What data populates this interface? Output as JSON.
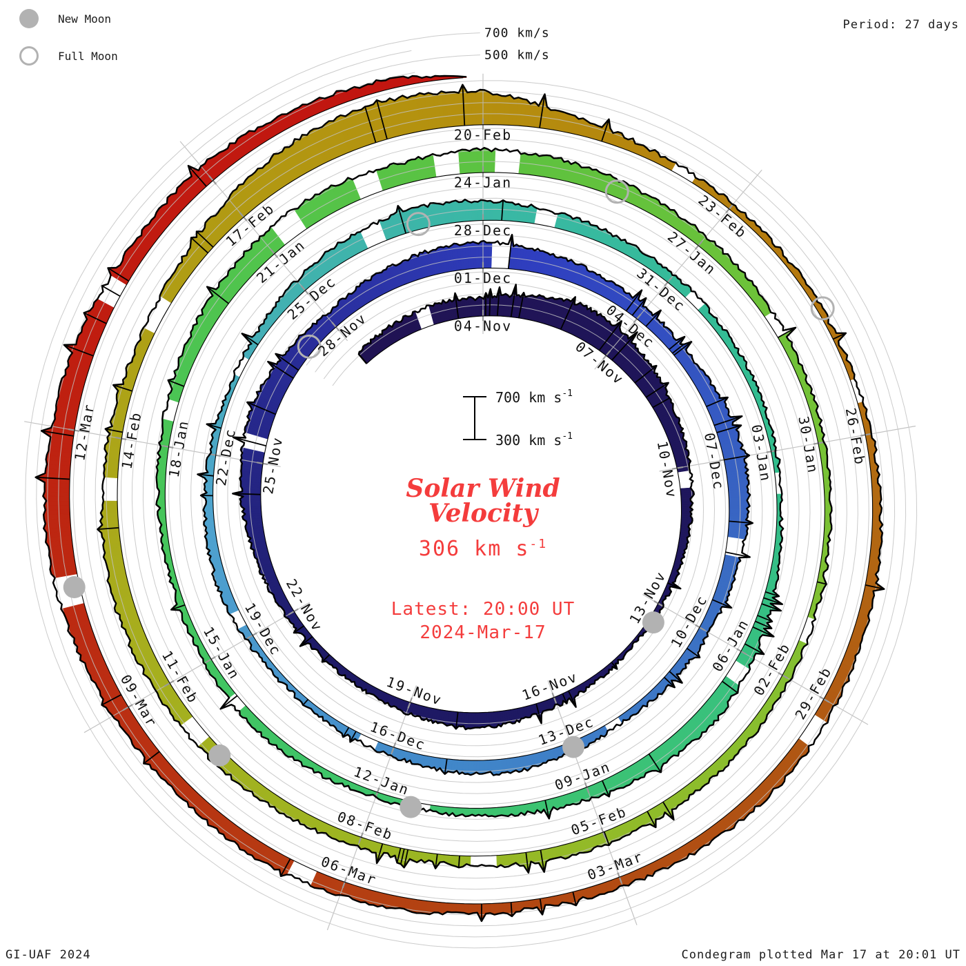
{
  "legend": {
    "new_moon": "New Moon",
    "full_moon": "Full Moon"
  },
  "header": {
    "period": "Period: 27 days"
  },
  "footer": {
    "left": "GI-UAF 2024",
    "right": "Condegram plotted Mar 17 at 20:01 UT"
  },
  "center": {
    "title_line1": "Solar Wind",
    "title_line2": "Velocity",
    "value": "306 km s",
    "value_sup": "-1",
    "latest_line1": "Latest: 20:00 UT",
    "latest_line2": "2024-Mar-17"
  },
  "scalebar": {
    "top": "700 km s",
    "top_sup": "-1",
    "bottom": "300 km s",
    "bottom_sup": "-1"
  },
  "chart_data": {
    "type": "area-spiral",
    "title": "Solar Wind Velocity",
    "units": "km/s",
    "period_days": 27,
    "angle_positions_per_turn": 9,
    "ylim": [
      300,
      700
    ],
    "radial_reference_levels": [
      400,
      500,
      600,
      700
    ],
    "outer_scale_labels": [
      {
        "text": "700 km/s",
        "level": 700
      },
      {
        "text": "500 km/s",
        "level": 500
      }
    ],
    "start_date": "2023-11-01",
    "end_day": 137.8333,
    "latest_value": 306,
    "latest_time": "20:00 UT",
    "latest_date": "2024-Mar-17",
    "velocity_daily": [
      420,
      450,
      480,
      460,
      520,
      580,
      560,
      500,
      450,
      420,
      390,
      360,
      340,
      330,
      350,
      380,
      420,
      440,
      400,
      370,
      360,
      380,
      420,
      460,
      500,
      530,
      490,
      440,
      480,
      520,
      540,
      500,
      460,
      430,
      410,
      450,
      490,
      470,
      430,
      400,
      380,
      360,
      390,
      430,
      410,
      380,
      360,
      350,
      370,
      400,
      380,
      360,
      350,
      370,
      420,
      470,
      500,
      480,
      440,
      410,
      390,
      370,
      360,
      350,
      340,
      380,
      430,
      480,
      450,
      410,
      380,
      360,
      350,
      370,
      390,
      370,
      350,
      360,
      380,
      420,
      460,
      500,
      520,
      490,
      510,
      480,
      440,
      410,
      390,
      370,
      360,
      350,
      360,
      380,
      390,
      400,
      420,
      400,
      380,
      390,
      410,
      430,
      450,
      470,
      450,
      420,
      400,
      430,
      520,
      610,
      640,
      600,
      450,
      380,
      360,
      350,
      340,
      360,
      380,
      400,
      420,
      430,
      410,
      390,
      380,
      400,
      430,
      450,
      430,
      460,
      500,
      530,
      510,
      480,
      450,
      470,
      430,
      390
    ],
    "gaps": [
      [
        1.55,
        1.85
      ],
      [
        9.1,
        9.45
      ],
      [
        24.2,
        24.5
      ],
      [
        30.15,
        30.45
      ],
      [
        37.35,
        37.65
      ],
      [
        41.1,
        41.35
      ],
      [
        45.25,
        45.6
      ],
      [
        48.2,
        48.45
      ],
      [
        52.3,
        52.6
      ],
      [
        55.15,
        55.5
      ],
      [
        57.8,
        58.1
      ],
      [
        60.35,
        60.6
      ],
      [
        63.3,
        63.65
      ],
      [
        66.15,
        66.4
      ],
      [
        71.25,
        71.6
      ],
      [
        74.2,
        74.45
      ],
      [
        78.35,
        78.6
      ],
      [
        81.2,
        81.55
      ],
      [
        82.35,
        82.65
      ],
      [
        83.4,
        83.7
      ],
      [
        84.15,
        84.45
      ],
      [
        88.25,
        88.55
      ],
      [
        92.2,
        92.5
      ],
      [
        97.35,
        97.65
      ],
      [
        101.2,
        101.5
      ],
      [
        104.25,
        104.55
      ],
      [
        106.3,
        106.7
      ],
      [
        113.2,
        113.5
      ],
      [
        116.35,
        116.65
      ],
      [
        120.2,
        120.5
      ],
      [
        126.3,
        126.6
      ],
      [
        130.2,
        130.5
      ],
      [
        133.35,
        133.6
      ]
    ],
    "spike_zones": [
      [
        3,
        8
      ],
      [
        12,
        15
      ],
      [
        35,
        40
      ],
      [
        43,
        46
      ],
      [
        65,
        68
      ],
      [
        95,
        99
      ],
      [
        131,
        134
      ]
    ],
    "date_labels": [
      {
        "d": 3,
        "t": "04-Nov"
      },
      {
        "d": 6,
        "t": "07-Nov"
      },
      {
        "d": 9,
        "t": "10-Nov"
      },
      {
        "d": 12,
        "t": "13-Nov"
      },
      {
        "d": 15,
        "t": "16-Nov"
      },
      {
        "d": 18,
        "t": "19-Nov"
      },
      {
        "d": 21,
        "t": "22-Nov"
      },
      {
        "d": 24,
        "t": "25-Nov"
      },
      {
        "d": 27,
        "t": "28-Nov"
      },
      {
        "d": 30,
        "t": "01-Dec"
      },
      {
        "d": 33,
        "t": "04-Dec"
      },
      {
        "d": 36,
        "t": "07-Dec"
      },
      {
        "d": 39,
        "t": "10-Dec"
      },
      {
        "d": 42,
        "t": "13-Dec"
      },
      {
        "d": 45,
        "t": "16-Dec"
      },
      {
        "d": 48,
        "t": "19-Dec"
      },
      {
        "d": 51,
        "t": "22-Dec"
      },
      {
        "d": 54,
        "t": "25-Dec"
      },
      {
        "d": 57,
        "t": "28-Dec"
      },
      {
        "d": 60,
        "t": "31-Dec"
      },
      {
        "d": 63,
        "t": "03-Jan"
      },
      {
        "d": 66,
        "t": "06-Jan"
      },
      {
        "d": 69,
        "t": "09-Jan"
      },
      {
        "d": 72,
        "t": "12-Jan"
      },
      {
        "d": 75,
        "t": "15-Jan"
      },
      {
        "d": 78,
        "t": "18-Jan"
      },
      {
        "d": 81,
        "t": "21-Jan"
      },
      {
        "d": 84,
        "t": "24-Jan"
      },
      {
        "d": 87,
        "t": "27-Jan"
      },
      {
        "d": 90,
        "t": "30-Jan"
      },
      {
        "d": 93,
        "t": "02-Feb"
      },
      {
        "d": 96,
        "t": "05-Feb"
      },
      {
        "d": 99,
        "t": "08-Feb"
      },
      {
        "d": 102,
        "t": "11-Feb"
      },
      {
        "d": 105,
        "t": "14-Feb"
      },
      {
        "d": 108,
        "t": "17-Feb"
      },
      {
        "d": 111,
        "t": "20-Feb"
      },
      {
        "d": 114,
        "t": "23-Feb"
      },
      {
        "d": 117,
        "t": "26-Feb"
      },
      {
        "d": 120,
        "t": "29-Feb"
      },
      {
        "d": 123,
        "t": "03-Mar"
      },
      {
        "d": 126,
        "t": "06-Mar"
      },
      {
        "d": 129,
        "t": "09-Mar"
      },
      {
        "d": 132,
        "t": "12-Mar"
      }
    ],
    "moons": [
      {
        "date": "2023-11-13",
        "type": "new",
        "d": 12.39
      },
      {
        "date": "2023-12-12",
        "type": "new",
        "d": 41.98
      },
      {
        "date": "2024-01-11",
        "type": "new",
        "d": 71.5
      },
      {
        "date": "2024-02-09",
        "type": "new",
        "d": 100.96
      },
      {
        "date": "2024-03-10",
        "type": "new",
        "d": 130.37
      },
      {
        "date": "2023-11-27",
        "type": "full",
        "d": 26.39
      },
      {
        "date": "2023-12-27",
        "type": "full",
        "d": 56.02
      },
      {
        "date": "2024-01-25",
        "type": "full",
        "d": 85.75
      },
      {
        "date": "2024-02-24",
        "type": "full",
        "d": 115.52
      }
    ],
    "color_stops": [
      [
        0,
        "#201353"
      ],
      [
        20,
        "#1e1a66"
      ],
      [
        27,
        "#2a2f9e"
      ],
      [
        31,
        "#2f3fc0"
      ],
      [
        38,
        "#3a6cc3"
      ],
      [
        44,
        "#4187c9"
      ],
      [
        50,
        "#4fa3cf"
      ],
      [
        54,
        "#41b2ae"
      ],
      [
        58,
        "#38b9a2"
      ],
      [
        63,
        "#32bd8d"
      ],
      [
        68,
        "#3bc277"
      ],
      [
        72,
        "#3dc46a"
      ],
      [
        77,
        "#46c55b"
      ],
      [
        81,
        "#52c44b"
      ],
      [
        85,
        "#60c23e"
      ],
      [
        90,
        "#76c236"
      ],
      [
        94,
        "#8abe2e"
      ],
      [
        98,
        "#9ab723"
      ],
      [
        103,
        "#a8ad1d"
      ],
      [
        107,
        "#b09d14"
      ],
      [
        111,
        "#b58f0e"
      ],
      [
        115,
        "#b4790f"
      ],
      [
        118,
        "#b26812"
      ],
      [
        121,
        "#b05413"
      ],
      [
        125,
        "#b34312"
      ],
      [
        129,
        "#ba2f12"
      ],
      [
        133,
        "#c01d10"
      ],
      [
        138,
        "#c21410"
      ]
    ],
    "marker_colors": {
      "moon_gray": "#b2b2b2",
      "grid_gray": "#bdbdbd",
      "accent_red": "#f43c3c"
    }
  }
}
